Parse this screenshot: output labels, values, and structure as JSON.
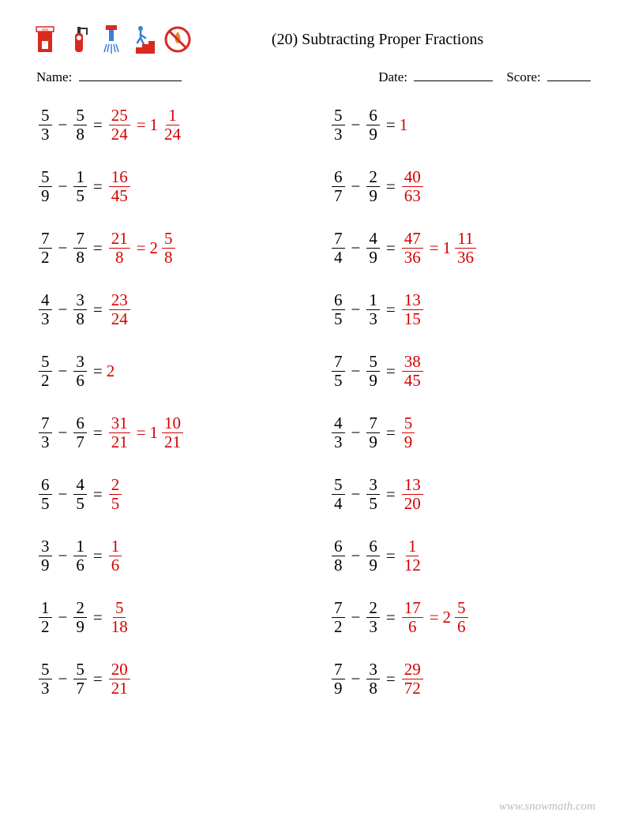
{
  "title": "(20) Subtracting Proper Fractions",
  "labels": {
    "name": "Name:",
    "date": "Date:",
    "score": "Score:"
  },
  "underline_widths": {
    "name": 130,
    "date": 100,
    "score": 55
  },
  "colors": {
    "answer": "#d40000",
    "text": "#000000",
    "footer": "#bdbdbd",
    "icon_red": "#d82a1f",
    "icon_blue": "#3a7fd5",
    "icon_orange": "#e88b2e",
    "icon_brown": "#8a4a20"
  },
  "footer": "www.snowmath.com",
  "problems_left": [
    {
      "a": {
        "n": "5",
        "d": "3"
      },
      "b": {
        "n": "5",
        "d": "8"
      },
      "ans": {
        "frac": {
          "n": "25",
          "d": "24"
        },
        "mixed": {
          "w": "1",
          "n": "1",
          "d": "24"
        }
      }
    },
    {
      "a": {
        "n": "5",
        "d": "9"
      },
      "b": {
        "n": "1",
        "d": "5"
      },
      "ans": {
        "frac": {
          "n": "16",
          "d": "45"
        }
      }
    },
    {
      "a": {
        "n": "7",
        "d": "2"
      },
      "b": {
        "n": "7",
        "d": "8"
      },
      "ans": {
        "frac": {
          "n": "21",
          "d": "8"
        },
        "mixed": {
          "w": "2",
          "n": "5",
          "d": "8"
        }
      }
    },
    {
      "a": {
        "n": "4",
        "d": "3"
      },
      "b": {
        "n": "3",
        "d": "8"
      },
      "ans": {
        "frac": {
          "n": "23",
          "d": "24"
        }
      }
    },
    {
      "a": {
        "n": "5",
        "d": "2"
      },
      "b": {
        "n": "3",
        "d": "6"
      },
      "ans": {
        "int": "2"
      }
    },
    {
      "a": {
        "n": "7",
        "d": "3"
      },
      "b": {
        "n": "6",
        "d": "7"
      },
      "ans": {
        "frac": {
          "n": "31",
          "d": "21"
        },
        "mixed": {
          "w": "1",
          "n": "10",
          "d": "21"
        }
      }
    },
    {
      "a": {
        "n": "6",
        "d": "5"
      },
      "b": {
        "n": "4",
        "d": "5"
      },
      "ans": {
        "frac": {
          "n": "2",
          "d": "5"
        }
      }
    },
    {
      "a": {
        "n": "3",
        "d": "9"
      },
      "b": {
        "n": "1",
        "d": "6"
      },
      "ans": {
        "frac": {
          "n": "1",
          "d": "6"
        }
      }
    },
    {
      "a": {
        "n": "1",
        "d": "2"
      },
      "b": {
        "n": "2",
        "d": "9"
      },
      "ans": {
        "frac": {
          "n": "5",
          "d": "18"
        }
      }
    },
    {
      "a": {
        "n": "5",
        "d": "3"
      },
      "b": {
        "n": "5",
        "d": "7"
      },
      "ans": {
        "frac": {
          "n": "20",
          "d": "21"
        }
      }
    }
  ],
  "problems_right": [
    {
      "a": {
        "n": "5",
        "d": "3"
      },
      "b": {
        "n": "6",
        "d": "9"
      },
      "ans": {
        "int": "1"
      }
    },
    {
      "a": {
        "n": "6",
        "d": "7"
      },
      "b": {
        "n": "2",
        "d": "9"
      },
      "ans": {
        "frac": {
          "n": "40",
          "d": "63"
        }
      }
    },
    {
      "a": {
        "n": "7",
        "d": "4"
      },
      "b": {
        "n": "4",
        "d": "9"
      },
      "ans": {
        "frac": {
          "n": "47",
          "d": "36"
        },
        "mixed": {
          "w": "1",
          "n": "11",
          "d": "36"
        }
      }
    },
    {
      "a": {
        "n": "6",
        "d": "5"
      },
      "b": {
        "n": "1",
        "d": "3"
      },
      "ans": {
        "frac": {
          "n": "13",
          "d": "15"
        }
      }
    },
    {
      "a": {
        "n": "7",
        "d": "5"
      },
      "b": {
        "n": "5",
        "d": "9"
      },
      "ans": {
        "frac": {
          "n": "38",
          "d": "45"
        }
      }
    },
    {
      "a": {
        "n": "4",
        "d": "3"
      },
      "b": {
        "n": "7",
        "d": "9"
      },
      "ans": {
        "frac": {
          "n": "5",
          "d": "9"
        }
      }
    },
    {
      "a": {
        "n": "5",
        "d": "4"
      },
      "b": {
        "n": "3",
        "d": "5"
      },
      "ans": {
        "frac": {
          "n": "13",
          "d": "20"
        }
      }
    },
    {
      "a": {
        "n": "6",
        "d": "8"
      },
      "b": {
        "n": "6",
        "d": "9"
      },
      "ans": {
        "frac": {
          "n": "1",
          "d": "12"
        }
      }
    },
    {
      "a": {
        "n": "7",
        "d": "2"
      },
      "b": {
        "n": "2",
        "d": "3"
      },
      "ans": {
        "frac": {
          "n": "17",
          "d": "6"
        },
        "mixed": {
          "w": "2",
          "n": "5",
          "d": "6"
        }
      }
    },
    {
      "a": {
        "n": "7",
        "d": "9"
      },
      "b": {
        "n": "3",
        "d": "8"
      },
      "ans": {
        "frac": {
          "n": "29",
          "d": "72"
        }
      }
    }
  ]
}
